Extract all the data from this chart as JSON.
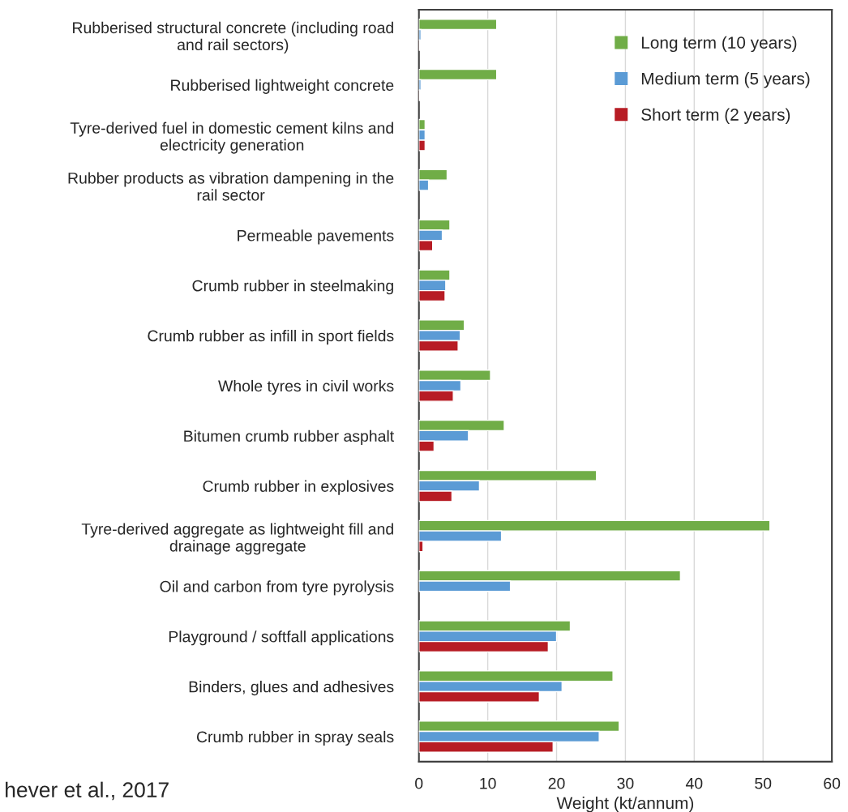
{
  "chart_data": {
    "type": "bar",
    "orientation": "horizontal",
    "xlabel": "Weight (kt/annum)",
    "categories": [
      "Rubberised structural concrete (including road\nand rail sectors)",
      "Rubberised lightweight concrete",
      "Tyre-derived fuel in domestic cement kilns and\nelectricity generation",
      "Rubber products as vibration dampening in the\nrail sector",
      "Permeable pavements",
      "Crumb rubber in steelmaking",
      "Crumb rubber as infill in sport fields",
      "Whole tyres in civil works",
      "Bitumen crumb rubber asphalt",
      "Crumb rubber in explosives",
      "Tyre-derived aggregate as lightweight fill and\ndrainage aggregate",
      "Oil and carbon from tyre pyrolysis",
      "Playground / softfall applications",
      "Binders, glues and adhesives",
      "Crumb rubber in spray seals"
    ],
    "series": [
      {
        "name": "Long term (10 years)",
        "color": "#70ad47",
        "values": [
          11.3,
          11.3,
          0.9,
          4.1,
          4.5,
          4.5,
          6.6,
          10.4,
          12.4,
          25.8,
          51.0,
          38.0,
          22.0,
          28.2,
          29.1
        ]
      },
      {
        "name": "Medium term (5 years)",
        "color": "#5b9bd5",
        "values": [
          0.3,
          0.3,
          0.9,
          1.4,
          3.4,
          3.9,
          6.0,
          6.1,
          7.2,
          8.8,
          12.0,
          13.3,
          20.0,
          20.8,
          26.2
        ]
      },
      {
        "name": "Short term (2 years)",
        "color": "#b71c24",
        "values": [
          0.1,
          0.1,
          0.9,
          null,
          2.0,
          3.8,
          5.7,
          5.0,
          2.2,
          4.8,
          0.6,
          null,
          18.8,
          17.5,
          19.5
        ]
      }
    ],
    "xlim": [
      0,
      60
    ],
    "xticks": [
      0,
      10,
      20,
      30,
      40,
      50,
      60
    ],
    "grid": "x",
    "legend": "top right",
    "annotations": [
      "hever et al., 2017"
    ]
  }
}
